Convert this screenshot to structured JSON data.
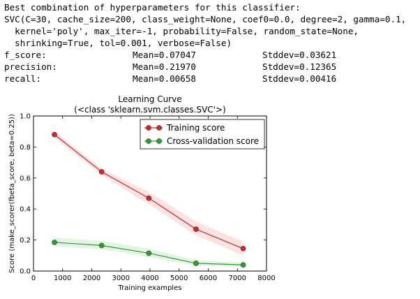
{
  "output": {
    "header": "Best combination of hyperparameters for this classifier:",
    "params": [
      "SVC(C=30, cache_size=200, class_weight=None, coef0=0.0, degree=2, gamma=0.1,",
      "  kernel='poly', max_iter=-1, probability=False, random_state=None,",
      "  shrinking=True, tol=0.001, verbose=False)"
    ],
    "metrics": [
      {
        "name": "f_score:",
        "mean": "Mean=0.07047",
        "std": "Stddev=0.03621"
      },
      {
        "name": "precision:",
        "mean": "Mean=0.21970",
        "std": "Stddev=0.12365"
      },
      {
        "name": "recall:",
        "mean": "Mean=0.00658",
        "std": "Stddev=0.00416"
      }
    ]
  },
  "chart_data": {
    "type": "line",
    "title": "Learning Curve",
    "subtitle": "(<class 'sklearn.svm.classes.SVC'>)",
    "xlabel": "Training examples",
    "ylabel": "Score (make_scorer(fbeta_score, beta=0.25))",
    "xlim": [
      0,
      8000
    ],
    "ylim": [
      0.0,
      1.0
    ],
    "xticks": [
      0,
      1000,
      2000,
      3000,
      4000,
      5000,
      6000,
      7000,
      8000
    ],
    "yticks": [
      0.0,
      0.2,
      0.4,
      0.6,
      0.8,
      1.0
    ],
    "yticklabels": [
      "0.0",
      "0.2",
      "0.4",
      "0.6",
      "0.8",
      "1.0"
    ],
    "grid": false,
    "legend_position": "top-right",
    "series": [
      {
        "name": "Training score",
        "color": "#d62728",
        "x": [
          720,
          2340,
          3960,
          5580,
          7200
        ],
        "values": [
          0.88,
          0.64,
          0.47,
          0.27,
          0.145
        ],
        "lower": [
          0.86,
          0.62,
          0.43,
          0.23,
          0.1
        ],
        "upper": [
          0.9,
          0.66,
          0.51,
          0.32,
          0.19
        ]
      },
      {
        "name": "Cross-validation score",
        "color": "#2ca02c",
        "x": [
          720,
          2340,
          3960,
          5580,
          7200
        ],
        "values": [
          0.185,
          0.165,
          0.115,
          0.05,
          0.04
        ],
        "lower": [
          0.16,
          0.14,
          0.09,
          0.035,
          0.03
        ],
        "upper": [
          0.215,
          0.195,
          0.145,
          0.07,
          0.055
        ]
      }
    ]
  }
}
